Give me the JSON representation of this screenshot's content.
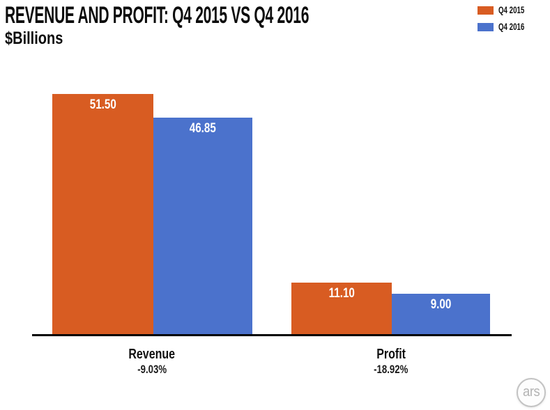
{
  "logo": {
    "text": "ars"
  },
  "chart_data": {
    "type": "bar",
    "title": "REVENUE AND PROFIT: Q4 2015 VS Q4 2016",
    "ylabel": "$Billions",
    "xlabel": "",
    "categories": [
      "Revenue",
      "Profit"
    ],
    "category_deltas": [
      "-9.03%",
      "-18.92%"
    ],
    "series": [
      {
        "name": "Q4 2015",
        "color": "#d85c22",
        "values": [
          51.5,
          11.1
        ],
        "value_labels": [
          "51.50",
          "11.10"
        ]
      },
      {
        "name": "Q4 2016",
        "color": "#4b72cc",
        "values": [
          46.85,
          9.0
        ],
        "value_labels": [
          "46.85",
          "9.00"
        ]
      }
    ],
    "ylim": [
      0,
      53
    ],
    "grid": false,
    "y_axis_visible": false,
    "legend_position": "top-right",
    "bar_value_label_color": "#ffffff",
    "axis_line_color": "#000000",
    "background_color": "#ffffff"
  }
}
